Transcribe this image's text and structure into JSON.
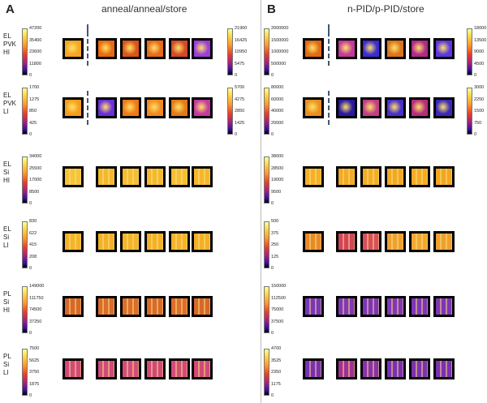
{
  "panel_a": {
    "letter": "A",
    "title": "anneal/anneal/store",
    "steps": [
      "anneal",
      "anneal",
      "anneal",
      "anneal",
      "store"
    ]
  },
  "panel_b": {
    "letter": "B",
    "title": "n-PID/p-PID/store",
    "steps": [
      "n-PID",
      "n-PID",
      "p-PID",
      "p-PID",
      "store"
    ]
  },
  "rows": [
    {
      "label": [
        "EL",
        "PVK",
        "HI"
      ],
      "a_scale": [
        "47200",
        "35400",
        "23600",
        "11800",
        "0"
      ],
      "a_scale2": [
        "21900",
        "16425",
        "10950",
        "5475",
        "0"
      ],
      "b_scale": [
        "2000000",
        "1500000",
        "1000000",
        "500000",
        "0"
      ],
      "b_scale2": [
        "18000",
        "13500",
        "9000",
        "4500",
        "0"
      ],
      "a_tiles": [
        "#f5a623",
        "#e86a10",
        "#d9541a",
        "#e56a1a",
        "#d14a2a",
        "#9b3fd6"
      ],
      "b_tiles": [
        "#e06a16",
        "#c23a9a",
        "#3b2bd0",
        "#d8741e",
        "#b02a8a",
        "#5b37e0"
      ]
    },
    {
      "label": [
        "EL",
        "PVK",
        "LI"
      ],
      "a_scale": [
        "1700",
        "1275",
        "850",
        "425",
        "0"
      ],
      "a_scale2": [
        "5700",
        "4275",
        "2850",
        "1425",
        "0"
      ],
      "b_scale": [
        "80000",
        "60000",
        "40000",
        "20000",
        "0"
      ],
      "b_scale2": [
        "3000",
        "2250",
        "1500",
        "750",
        "0"
      ],
      "a_tiles": [
        "#f59e1a",
        "#6a2fd9",
        "#ef7a18",
        "#f08a1f",
        "#e37a1a",
        "#c33aa0"
      ],
      "b_tiles": [
        "#e89020",
        "#2a1aa0",
        "#c23e88",
        "#4a2fc8",
        "#b42e7c",
        "#3a28b8"
      ]
    },
    {
      "label": [
        "EL",
        "Si",
        "HI"
      ],
      "a_scale": [
        "34000",
        "25500",
        "17000",
        "8500",
        "0"
      ],
      "b_scale": [
        "38000",
        "28500",
        "19000",
        "9500",
        "0"
      ],
      "a_tiles": [
        "#f6c33a",
        "#f4b82e",
        "#f5bd34",
        "#f4b930",
        "#f5be36",
        "#f4b62c"
      ],
      "b_tiles": [
        "#f4b02a",
        "#f3aa26",
        "#f3ae28",
        "#f2a824",
        "#f3ac27",
        "#f2a622"
      ]
    },
    {
      "label": [
        "EL",
        "Si",
        "LI"
      ],
      "a_scale": [
        "830",
        "622",
        "415",
        "208",
        "0"
      ],
      "b_scale": [
        "500",
        "375",
        "250",
        "125",
        "0"
      ],
      "a_tiles": [
        "#f4b32a",
        "#f3b02a",
        "#f4b42c",
        "#f3b12a",
        "#f4b32c",
        "#f3af28"
      ],
      "b_tiles": [
        "#e88a2a",
        "#d2445a",
        "#d8505a",
        "#eea032",
        "#f0a834",
        "#eea030"
      ]
    },
    {
      "label": [
        "PL",
        "Si",
        "HI"
      ],
      "a_scale": [
        "149000",
        "111750",
        "74500",
        "37250",
        "0"
      ],
      "b_scale": [
        "150000",
        "112500",
        "75000",
        "37500",
        "0"
      ],
      "a_tiles": [
        "#d8682a",
        "#da6c2c",
        "#dc6e2c",
        "#da6a2a",
        "#dc6e2e",
        "#d8682a"
      ],
      "b_tiles": [
        "#7a36b8",
        "#8238b4",
        "#7e36b6",
        "#8238b2",
        "#7e36b6",
        "#7c36b4"
      ]
    },
    {
      "label": [
        "PL",
        "Si",
        "LI"
      ],
      "a_scale": [
        "7500",
        "5625",
        "3750",
        "1875",
        "0"
      ],
      "b_scale": [
        "4700",
        "3525",
        "2350",
        "1175",
        "0"
      ],
      "a_tiles": [
        "#d24a78",
        "#d04c7a",
        "#d24e7a",
        "#d04a78",
        "#d24c7a",
        "#d04a78"
      ],
      "b_tiles": [
        "#7a30b0",
        "#a03094",
        "#8a32a6",
        "#7a30b0",
        "#7c32ae",
        "#7a30b0"
      ]
    }
  ],
  "colors": {
    "accent_arrow": "#c9a9dc",
    "dash": "#445577"
  }
}
